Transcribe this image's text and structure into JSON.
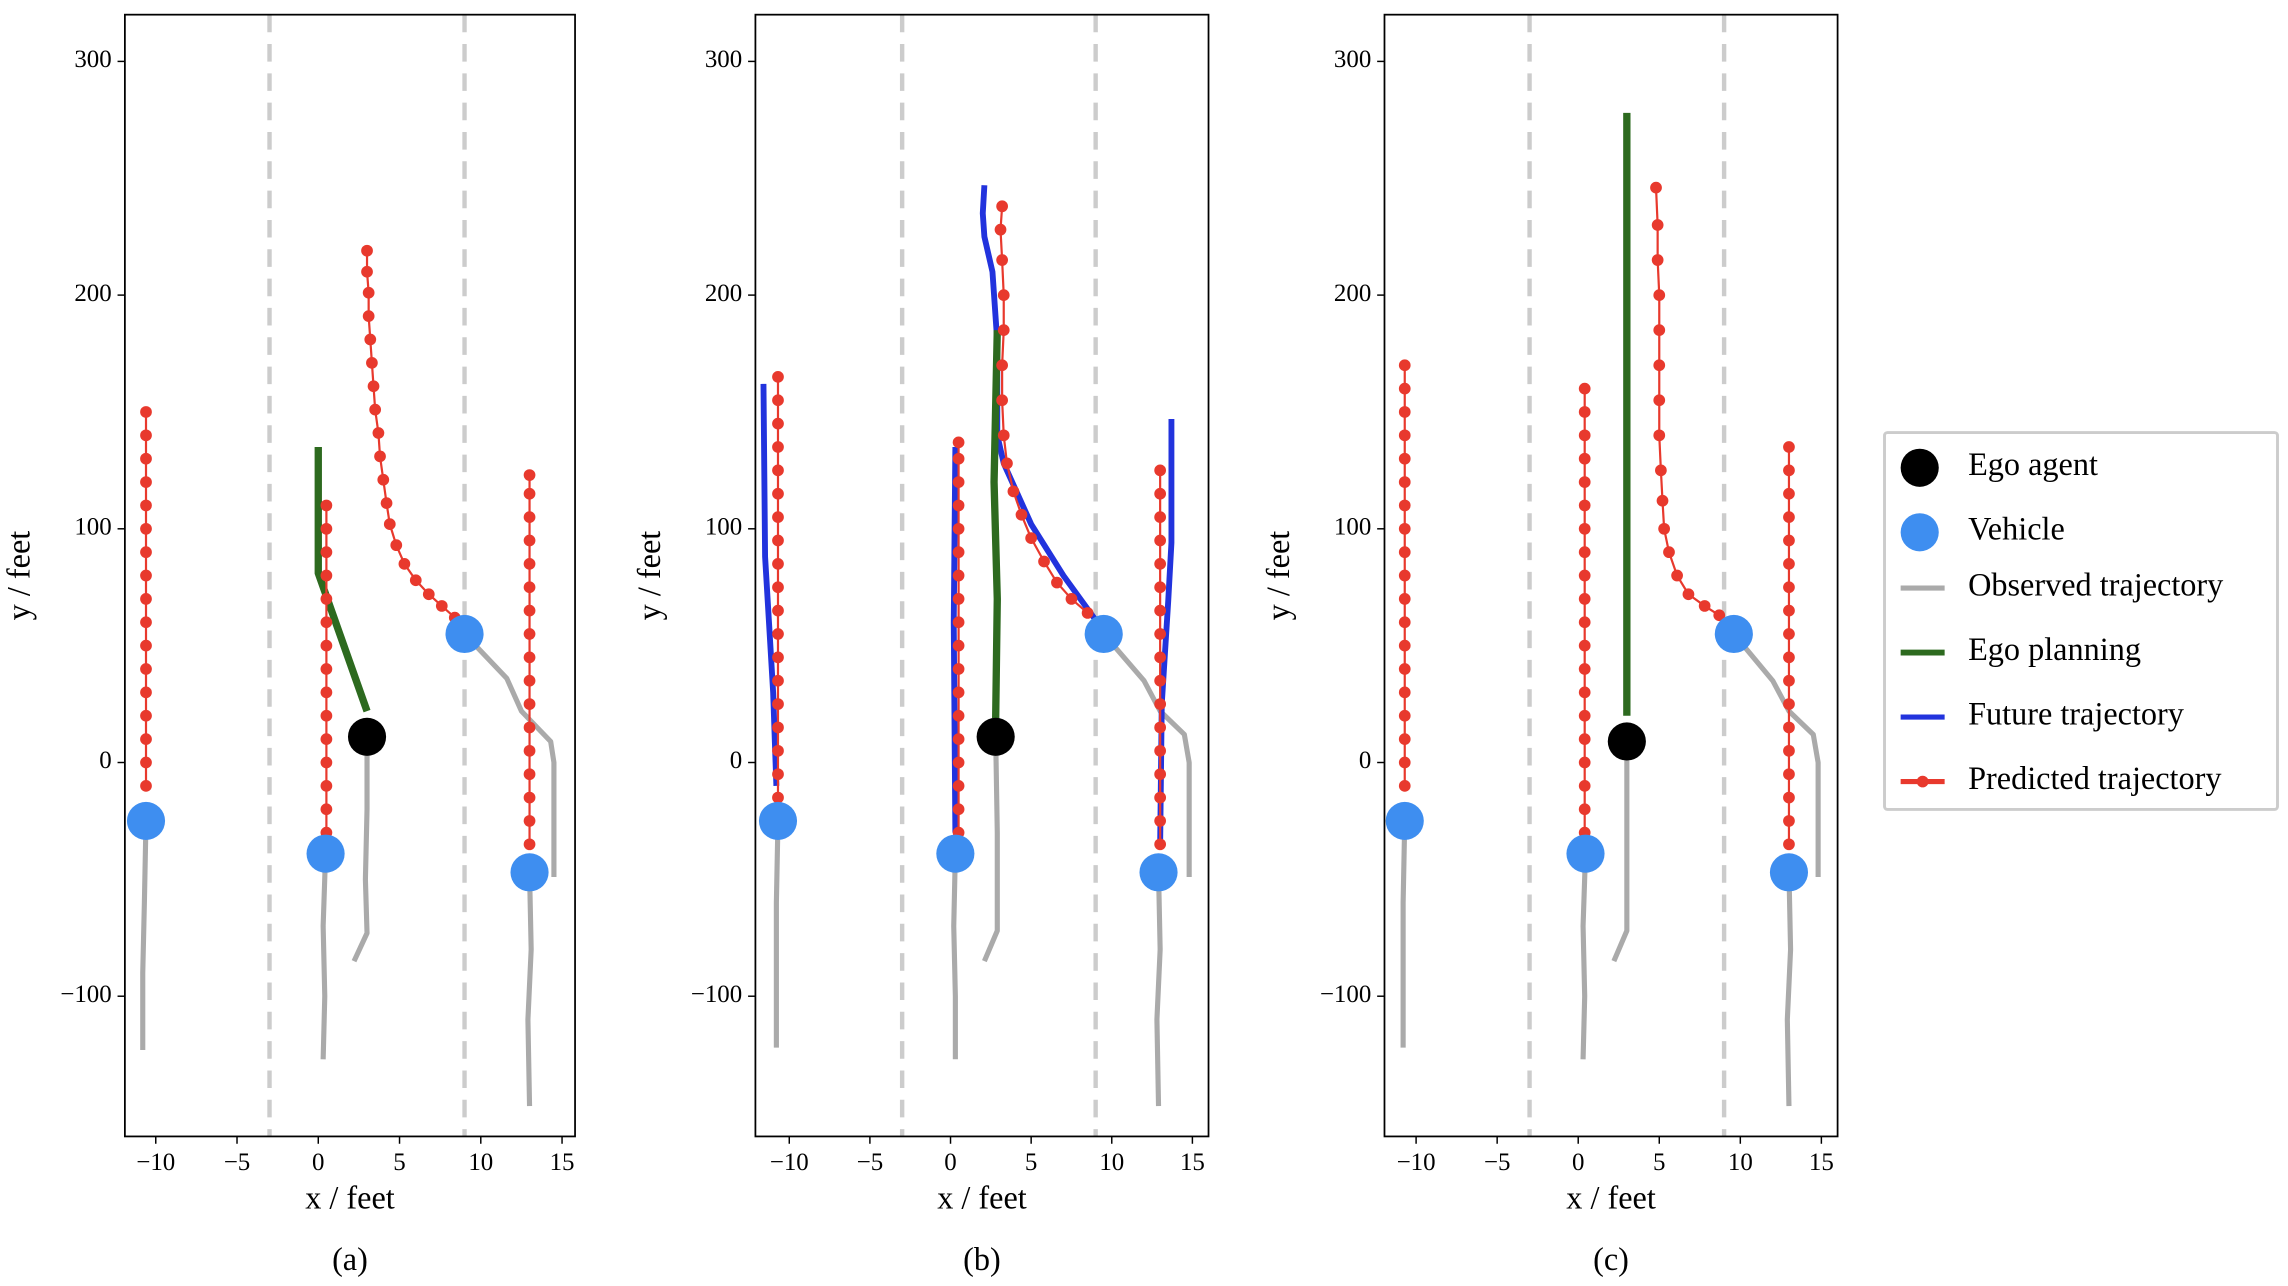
{
  "legend": [
    {
      "name": "Ego agent",
      "color": "#000000"
    },
    {
      "name": "Vehicle",
      "color": "#3e8ef0"
    },
    {
      "name": "Observed trajectory",
      "color": "#aaaaaa"
    },
    {
      "name": "Ego planning",
      "color": "#2d6a1f"
    },
    {
      "name": "Future trajectory",
      "color": "#2233dd"
    },
    {
      "name": "Predicted trajectory",
      "color": "#e8392d"
    }
  ],
  "chart_data": [
    {
      "type": "line",
      "caption": "(a)",
      "xlabel": "x / feet",
      "ylabel": "y / feet",
      "xlim": [
        -11.9,
        15.8
      ],
      "ylim": [
        -160,
        320
      ],
      "xticks": [
        {
          "value": -10,
          "label": "−10"
        },
        {
          "value": -5,
          "label": "−5"
        },
        0,
        5,
        10,
        15
      ],
      "yticks": [
        {
          "value": -100,
          "label": "−100"
        },
        0,
        100,
        200,
        300
      ],
      "lanes": [
        -3,
        9
      ],
      "observed": [
        {
          "x": [
            -10.6,
            -10.7,
            -10.8,
            -10.8
          ],
          "y": [
            -25,
            -60,
            -90,
            -123
          ]
        },
        {
          "x": [
            0.45,
            0.3,
            0.4,
            0.3
          ],
          "y": [
            -39,
            -70,
            -100,
            -127
          ]
        },
        {
          "x": [
            3,
            3,
            2.9,
            3,
            2.2
          ],
          "y": [
            11,
            -20,
            -50,
            -73,
            -85
          ]
        },
        {
          "x": [
            9,
            11.6,
            12.5,
            14.3,
            14.5,
            14.5
          ],
          "y": [
            55,
            36,
            22,
            9,
            0,
            -49
          ]
        },
        {
          "x": [
            13,
            13.1,
            12.9,
            13
          ],
          "y": [
            -47,
            -80,
            -110,
            -147
          ]
        }
      ],
      "future": [],
      "planning": [
        {
          "x": [
            3,
            0,
            0
          ],
          "y": [
            22,
            81,
            135
          ]
        }
      ],
      "predicted": [
        {
          "x": [
            -10.6,
            -10.6,
            -10.6,
            -10.6,
            -10.6,
            -10.6,
            -10.6,
            -10.6,
            -10.6,
            -10.6,
            -10.6,
            -10.6,
            -10.6,
            -10.6,
            -10.6,
            -10.6,
            -10.6
          ],
          "y": [
            -10,
            0,
            10,
            20,
            30,
            40,
            50,
            60,
            70,
            80,
            90,
            100,
            110,
            120,
            130,
            140,
            150
          ]
        },
        {
          "x": [
            0.5,
            0.5,
            0.5,
            0.5,
            0.5,
            0.5,
            0.5,
            0.5,
            0.5,
            0.5,
            0.5,
            0.5,
            0.5,
            0.5,
            0.5
          ],
          "y": [
            -30,
            -20,
            -10,
            0,
            10,
            20,
            30,
            40,
            50,
            60,
            70,
            80,
            90,
            100,
            110
          ]
        },
        {
          "x": [
            8.4,
            7.6,
            6.8,
            6.0,
            5.3,
            4.8,
            4.4,
            4.2,
            4.0,
            3.8,
            3.7,
            3.5,
            3.4,
            3.3,
            3.2,
            3.1,
            3.1,
            3.0,
            3.0
          ],
          "y": [
            62,
            67,
            72,
            78,
            85,
            93,
            102,
            111,
            121,
            131,
            141,
            151,
            161,
            171,
            181,
            191,
            201,
            210,
            219
          ]
        },
        {
          "x": [
            13,
            13,
            13,
            13,
            13,
            13,
            13,
            13,
            13,
            13,
            13,
            13,
            13,
            13,
            13,
            13,
            13
          ],
          "y": [
            -35,
            -25,
            -15,
            -5,
            5,
            15,
            25,
            35,
            45,
            55,
            65,
            75,
            85,
            95,
            105,
            115,
            123
          ]
        }
      ],
      "vehicles": {
        "x": [
          -10.6,
          0.45,
          9,
          13
        ],
        "y": [
          -25,
          -39,
          55,
          -47
        ]
      },
      "ego": {
        "x": [
          3
        ],
        "y": [
          11
        ]
      }
    },
    {
      "type": "line",
      "caption": "(b)",
      "xlabel": "x / feet",
      "ylabel": "y / feet",
      "xlim": [
        -12.1,
        16.0
      ],
      "ylim": [
        -160,
        320
      ],
      "xticks": [
        {
          "value": -10,
          "label": "−10"
        },
        {
          "value": -5,
          "label": "−5"
        },
        0,
        5,
        10,
        15
      ],
      "yticks": [
        {
          "value": -100,
          "label": "−100"
        },
        0,
        100,
        200,
        300
      ],
      "lanes": [
        -3,
        9
      ],
      "observed": [
        {
          "x": [
            -10.7,
            -10.8,
            -10.8,
            -10.8
          ],
          "y": [
            -25,
            -60,
            -90,
            -122
          ]
        },
        {
          "x": [
            0.3,
            0.2,
            0.3,
            0.3
          ],
          "y": [
            -39,
            -70,
            -100,
            -127
          ]
        },
        {
          "x": [
            2.8,
            2.9,
            2.9,
            2.1
          ],
          "y": [
            11,
            -30,
            -72,
            -85
          ]
        },
        {
          "x": [
            9.5,
            12,
            13,
            14.5,
            14.8,
            14.8
          ],
          "y": [
            55,
            35,
            22,
            12,
            0,
            -49
          ]
        },
        {
          "x": [
            12.9,
            13,
            12.8,
            12.9
          ],
          "y": [
            -47,
            -80,
            -110,
            -147
          ]
        }
      ],
      "future": [
        {
          "x": [
            -10.8,
            -11,
            -11.5,
            -11.6
          ],
          "y": [
            -10,
            30,
            88,
            162
          ]
        },
        {
          "x": [
            0.3,
            0.2,
            0.3
          ],
          "y": [
            -30,
            60,
            135
          ]
        },
        {
          "x": [
            9.1,
            7,
            5,
            3.3,
            2.9,
            2.9,
            2.6,
            2.1,
            2.0,
            2.1
          ],
          "y": [
            60,
            80,
            102,
            128,
            140,
            180,
            210,
            225,
            235,
            247
          ]
        },
        {
          "x": [
            13,
            13.1,
            13.5,
            13.7,
            13.7
          ],
          "y": [
            -35,
            25,
            69,
            94,
            147
          ]
        }
      ],
      "planning": [
        {
          "x": [
            2.8,
            2.9,
            2.7,
            2.9
          ],
          "y": [
            19,
            70,
            120,
            185
          ]
        }
      ],
      "predicted": [
        {
          "x": [
            -10.7,
            -10.7,
            -10.7,
            -10.7,
            -10.7,
            -10.7,
            -10.7,
            -10.7,
            -10.7,
            -10.7,
            -10.7,
            -10.7,
            -10.7,
            -10.7,
            -10.7,
            -10.7,
            -10.7,
            -10.7,
            -10.7
          ],
          "y": [
            -15,
            -5,
            5,
            15,
            25,
            35,
            45,
            55,
            65,
            75,
            85,
            95,
            105,
            115,
            125,
            135,
            145,
            155,
            165
          ]
        },
        {
          "x": [
            0.5,
            0.5,
            0.5,
            0.5,
            0.5,
            0.5,
            0.5,
            0.5,
            0.5,
            0.5,
            0.5,
            0.5,
            0.5,
            0.5,
            0.5,
            0.5,
            0.5,
            0.5
          ],
          "y": [
            -30,
            -20,
            -10,
            0,
            10,
            20,
            30,
            40,
            50,
            60,
            70,
            80,
            90,
            100,
            110,
            120,
            130,
            137
          ]
        },
        {
          "x": [
            8.5,
            7.5,
            6.6,
            5.8,
            5.0,
            4.4,
            3.9,
            3.5,
            3.3,
            3.2,
            3.2,
            3.3,
            3.3,
            3.2,
            3.1,
            3.2
          ],
          "y": [
            64,
            70,
            77,
            86,
            96,
            106,
            116,
            128,
            140,
            155,
            170,
            185,
            200,
            215,
            228,
            238
          ]
        },
        {
          "x": [
            13,
            13,
            13,
            13,
            13,
            13,
            13,
            13,
            13,
            13,
            13,
            13,
            13,
            13,
            13,
            13,
            13
          ],
          "y": [
            -35,
            -25,
            -15,
            -5,
            5,
            15,
            25,
            35,
            45,
            55,
            65,
            75,
            85,
            95,
            105,
            115,
            125
          ]
        }
      ],
      "vehicles": {
        "x": [
          -10.7,
          0.3,
          9.5,
          12.9
        ],
        "y": [
          -25,
          -39,
          55,
          -47
        ]
      },
      "ego": {
        "x": [
          2.8
        ],
        "y": [
          11
        ]
      }
    },
    {
      "type": "line",
      "caption": "(c)",
      "xlabel": "x / feet",
      "ylabel": "y / feet",
      "xlim": [
        -11.95,
        16.0
      ],
      "ylim": [
        -160,
        320
      ],
      "xticks": [
        {
          "value": -10,
          "label": "−10"
        },
        {
          "value": -5,
          "label": "−5"
        },
        0,
        5,
        10,
        15
      ],
      "yticks": [
        {
          "value": -100,
          "label": "−100"
        },
        0,
        100,
        200,
        300
      ],
      "lanes": [
        -3,
        9
      ],
      "observed": [
        {
          "x": [
            -10.7,
            -10.8,
            -10.8,
            -10.8
          ],
          "y": [
            -25,
            -60,
            -90,
            -122
          ]
        },
        {
          "x": [
            0.45,
            0.3,
            0.4,
            0.3
          ],
          "y": [
            -39,
            -70,
            -100,
            -127
          ]
        },
        {
          "x": [
            3,
            3,
            3,
            2.2
          ],
          "y": [
            9,
            -30,
            -72,
            -85
          ]
        },
        {
          "x": [
            9.6,
            12,
            13,
            14.5,
            14.8,
            14.8
          ],
          "y": [
            55,
            35,
            22,
            12,
            0,
            -49
          ]
        },
        {
          "x": [
            13,
            13.1,
            12.9,
            13
          ],
          "y": [
            -47,
            -80,
            -110,
            -147
          ]
        }
      ],
      "future": [],
      "planning": [
        {
          "x": [
            3,
            3
          ],
          "y": [
            20,
            278
          ]
        }
      ],
      "predicted": [
        {
          "x": [
            -10.7,
            -10.7,
            -10.7,
            -10.7,
            -10.7,
            -10.7,
            -10.7,
            -10.7,
            -10.7,
            -10.7,
            -10.7,
            -10.7,
            -10.7,
            -10.7,
            -10.7,
            -10.7,
            -10.7,
            -10.7,
            -10.7
          ],
          "y": [
            -10,
            0,
            10,
            20,
            30,
            40,
            50,
            60,
            70,
            80,
            90,
            100,
            110,
            120,
            130,
            140,
            150,
            160,
            170
          ]
        },
        {
          "x": [
            0.4,
            0.4,
            0.4,
            0.4,
            0.4,
            0.4,
            0.4,
            0.4,
            0.4,
            0.4,
            0.4,
            0.4,
            0.4,
            0.4,
            0.4,
            0.4,
            0.4,
            0.4,
            0.4,
            0.4
          ],
          "y": [
            -30,
            -20,
            -10,
            0,
            10,
            20,
            30,
            40,
            50,
            60,
            70,
            80,
            90,
            100,
            110,
            120,
            130,
            140,
            150,
            160
          ]
        },
        {
          "x": [
            8.7,
            7.8,
            6.8,
            6.1,
            5.6,
            5.3,
            5.2,
            5.1,
            5.0,
            5.0,
            5.0,
            5.0,
            5.0,
            4.9,
            4.9,
            4.8
          ],
          "y": [
            63,
            67,
            72,
            80,
            90,
            100,
            112,
            125,
            140,
            155,
            170,
            185,
            200,
            215,
            230,
            246
          ]
        },
        {
          "x": [
            13,
            13,
            13,
            13,
            13,
            13,
            13,
            13,
            13,
            13,
            13,
            13,
            13,
            13,
            13,
            13,
            13,
            13
          ],
          "y": [
            -35,
            -25,
            -15,
            -5,
            5,
            15,
            25,
            35,
            45,
            55,
            65,
            75,
            85,
            95,
            105,
            115,
            125,
            135
          ]
        }
      ],
      "vehicles": {
        "x": [
          -10.7,
          0.45,
          9.6,
          13
        ],
        "y": [
          -25,
          -39,
          55,
          -47
        ]
      },
      "ego": {
        "x": [
          3
        ],
        "y": [
          9
        ]
      }
    }
  ]
}
